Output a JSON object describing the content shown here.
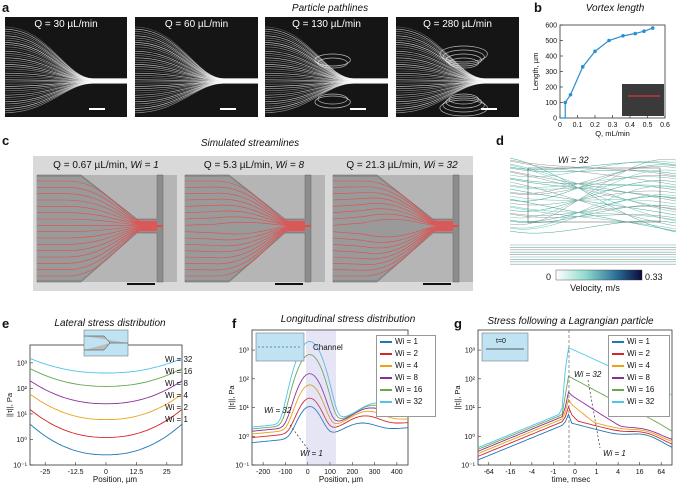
{
  "panels": {
    "a": {
      "letter": "a",
      "title": "Particle pathlines",
      "images": [
        "Q = 30 µL/min",
        "Q = 60 µL/min",
        "Q = 130 µL/min",
        "Q = 280 µL/min"
      ]
    },
    "b": {
      "letter": "b",
      "title": "Vortex length",
      "xlabel": "Q, mL/min",
      "ylabel": "Length, µm",
      "xticks": [
        "0",
        "0.1",
        "0.2",
        "0.3",
        "0.4",
        "0.5",
        "0.6"
      ],
      "yticks": [
        "0",
        "100",
        "200",
        "300",
        "400",
        "500",
        "600"
      ],
      "color": "#2a8fd1"
    },
    "c": {
      "letter": "c",
      "title": "Simulated streamlines",
      "sims": [
        {
          "q": "Q = 0.67 µL/min, ",
          "wi": "Wi = 1"
        },
        {
          "q": "Q = 5.3 µL/min, ",
          "wi": "Wi = 8"
        },
        {
          "q": "Q = 21.3 µL/min, ",
          "wi": "Wi = 32"
        }
      ]
    },
    "d": {
      "letter": "d",
      "wi_label": "Wi = 32",
      "colorbar_min": "0",
      "colorbar_max": "0.33",
      "colorbar_label": "Velocity, m/s"
    },
    "e": {
      "letter": "e",
      "title": "Lateral stress distribution",
      "xlabel": "Position, µm",
      "ylabel": "||τ||, Pa",
      "xticks": [
        "-25",
        "-12.5",
        "0",
        "12.5",
        "25"
      ],
      "yticks": [
        "10⁻¹",
        "10⁰",
        "10¹",
        "10²",
        "10³"
      ]
    },
    "f": {
      "letter": "f",
      "title": "Longitudinal stress distribution",
      "xlabel": "Position, µm",
      "ylabel": "||τ||, Pa",
      "channel_label": "Channel",
      "wi32_label": "Wi = 32",
      "wi1_label": "Wi = 1",
      "xticks": [
        "-200",
        "-100",
        "0",
        "100",
        "200",
        "300",
        "400"
      ],
      "yticks": [
        "10⁻¹",
        "10⁰",
        "10¹",
        "10²",
        "10³"
      ]
    },
    "g": {
      "letter": "g",
      "title": "Stress following a Lagrangian particle",
      "xlabel": "time, msec",
      "ylabel": "||τ||, Pa",
      "t0_label": "t=0",
      "wi32_label": "Wi = 32",
      "wi1_label": "Wi = 1",
      "xticks": [
        "-64",
        "-16",
        "-4",
        "-1",
        "0",
        "1",
        "4",
        "16",
        "64"
      ],
      "yticks": [
        "10⁻¹",
        "10⁰",
        "10¹",
        "10²",
        "10³"
      ]
    }
  },
  "legend": [
    "Wi = 1",
    "Wi = 2",
    "Wi = 4",
    "Wi = 8",
    "Wi = 16",
    "Wi = 32"
  ],
  "series_colors": [
    "#1f77b4",
    "#d62728",
    "#e8a317",
    "#8c2d9c",
    "#6aa84f",
    "#4fc3e8"
  ],
  "chart_data": [
    {
      "type": "line",
      "title": "Vortex length",
      "xlabel": "Q, mL/min",
      "ylabel": "Length, µm",
      "xlim": [
        0,
        0.6
      ],
      "ylim": [
        0,
        600
      ],
      "x": [
        0.03,
        0.06,
        0.13,
        0.2,
        0.28,
        0.36,
        0.43,
        0.48,
        0.53
      ],
      "values": [
        100,
        150,
        330,
        430,
        500,
        530,
        545,
        560,
        580
      ]
    },
    {
      "type": "line",
      "title": "Lateral stress distribution",
      "xlabel": "Position, µm",
      "ylabel": "||τ||, Pa",
      "xlim": [
        -27,
        27
      ],
      "ylim": [
        0.1,
        5000
      ],
      "yscale": "log",
      "series": [
        {
          "name": "Wi = 1",
          "edge": 4,
          "center": 0.25
        },
        {
          "name": "Wi = 2",
          "edge": 15,
          "center": 1.2
        },
        {
          "name": "Wi = 4",
          "edge": 60,
          "center": 6
        },
        {
          "name": "Wi = 8",
          "edge": 200,
          "center": 25
        },
        {
          "name": "Wi = 16",
          "edge": 600,
          "center": 120
        },
        {
          "name": "Wi = 32",
          "edge": 1500,
          "center": 400
        }
      ]
    },
    {
      "type": "line",
      "title": "Longitudinal stress distribution",
      "xlabel": "Position, µm",
      "ylabel": "||τ||, Pa",
      "xlim": [
        -300,
        500
      ],
      "ylim": [
        0.1,
        5000
      ],
      "yscale": "log",
      "series": [
        {
          "name": "Wi = 1",
          "peak": 10
        },
        {
          "name": "Wi = 2",
          "peak": 20
        },
        {
          "name": "Wi = 4",
          "peak": 60
        },
        {
          "name": "Wi = 8",
          "peak": 150
        },
        {
          "name": "Wi = 16",
          "peak": 700
        },
        {
          "name": "Wi = 32",
          "peak": 2000
        }
      ]
    },
    {
      "type": "line",
      "title": "Stress following a Lagrangian particle",
      "xlabel": "time, msec",
      "ylabel": "||τ||, Pa",
      "xlim": [
        -100,
        100
      ],
      "ylim": [
        0.1,
        5000
      ],
      "yscale": "log",
      "series": [
        {
          "name": "Wi = 1",
          "peak": 3
        },
        {
          "name": "Wi = 2",
          "peak": 7
        },
        {
          "name": "Wi = 4",
          "peak": 15
        },
        {
          "name": "Wi = 8",
          "peak": 30
        },
        {
          "name": "Wi = 16",
          "peak": 120
        },
        {
          "name": "Wi = 32",
          "peak": 1200
        }
      ]
    }
  ]
}
